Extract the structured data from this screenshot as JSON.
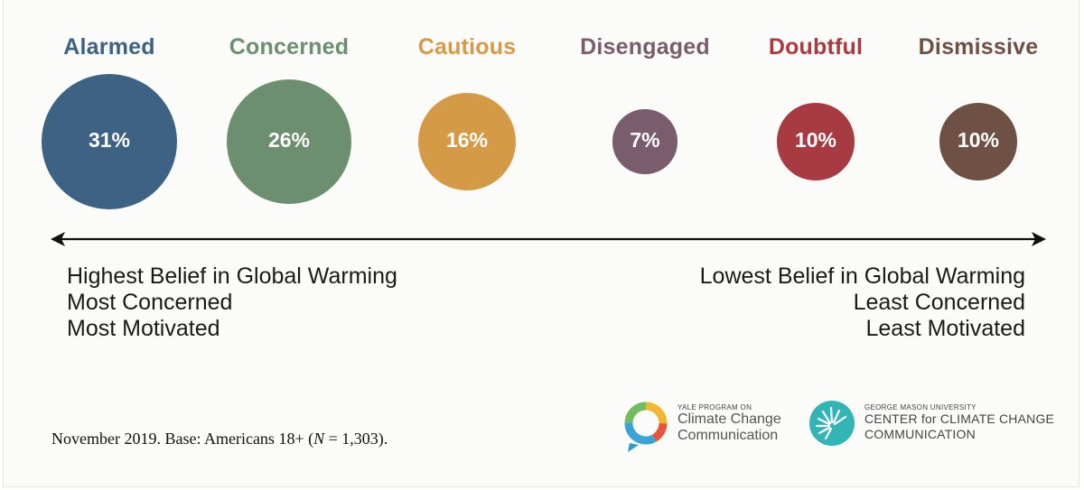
{
  "chart_data": {
    "type": "bubble",
    "title": "",
    "segments": [
      {
        "name": "Alarmed",
        "percent": 31,
        "label": "31%",
        "color": "#3e6283"
      },
      {
        "name": "Concerned",
        "percent": 26,
        "label": "26%",
        "color": "#6b8f6f"
      },
      {
        "name": "Cautious",
        "percent": 16,
        "label": "16%",
        "color": "#d59a45"
      },
      {
        "name": "Disengaged",
        "percent": 7,
        "label": "7%",
        "color": "#7a5d6d"
      },
      {
        "name": "Doubtful",
        "percent": 10,
        "label": "10%",
        "color": "#a83a42"
      },
      {
        "name": "Dismissive",
        "percent": 10,
        "label": "10%",
        "color": "#6e5144"
      }
    ],
    "scale_left": [
      "Highest Belief in Global Warming",
      "Most Concerned",
      "Most Motivated"
    ],
    "scale_right": [
      "Lowest Belief in Global Warming",
      "Least Concerned",
      "Least Motivated"
    ]
  },
  "footnote": {
    "prefix": "November 2019. Base: Americans 18+ (",
    "n_symbol": "N",
    "suffix": " = 1,303)."
  },
  "logos": {
    "yale": {
      "small": "YALE PROGRAM ON",
      "line1": "Climate Change",
      "line2": "Communication"
    },
    "gmu": {
      "small": "GEORGE MASON UNIVERSITY",
      "line1": "CENTER for CLIMATE CHANGE",
      "line2": "COMMUNICATION"
    }
  },
  "colors": {
    "axis": "#111111",
    "text": "#1a1a1a"
  }
}
